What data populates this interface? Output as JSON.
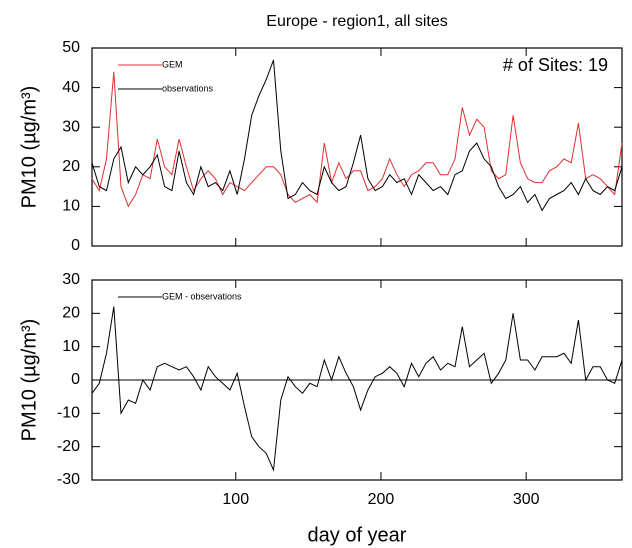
{
  "chart_data": [
    {
      "type": "line",
      "title": "Europe - region1, all sites",
      "annotation": "# of Sites: 19",
      "ylabel": "PM10 (µg/m³)",
      "x": [
        1,
        6,
        11,
        16,
        21,
        26,
        31,
        36,
        41,
        46,
        51,
        56,
        61,
        66,
        71,
        76,
        81,
        86,
        91,
        96,
        101,
        106,
        111,
        116,
        121,
        126,
        131,
        136,
        141,
        146,
        151,
        156,
        161,
        166,
        171,
        176,
        181,
        186,
        191,
        196,
        201,
        206,
        211,
        216,
        221,
        226,
        231,
        236,
        241,
        246,
        251,
        256,
        261,
        266,
        271,
        276,
        281,
        286,
        291,
        296,
        301,
        306,
        311,
        316,
        321,
        326,
        331,
        336,
        341,
        346,
        351,
        356,
        361,
        366
      ],
      "series": [
        {
          "name": "GEM",
          "color": "#e03030",
          "values": [
            17,
            14,
            22,
            44,
            15,
            10,
            13,
            18,
            17,
            27,
            20,
            18,
            27,
            20,
            14,
            17,
            19,
            17,
            13,
            16,
            15,
            14,
            16,
            18,
            20,
            20,
            18,
            13,
            11,
            12,
            13,
            11,
            26,
            16,
            21,
            17,
            19,
            19,
            14,
            15,
            17,
            22,
            18,
            15,
            18,
            19,
            21,
            21,
            18,
            18,
            22,
            35,
            28,
            32,
            30,
            19,
            17,
            18,
            33,
            21,
            17,
            16,
            16,
            19,
            20,
            22,
            21,
            31,
            17,
            18,
            17,
            15,
            13,
            26
          ]
        },
        {
          "name": "observations",
          "color": "#000000",
          "values": [
            21,
            15,
            14,
            22,
            25,
            16,
            20,
            18,
            20,
            23,
            15,
            14,
            24,
            16,
            13,
            20,
            15,
            16,
            14,
            19,
            13,
            22,
            33,
            38,
            42,
            47,
            24,
            12,
            13,
            16,
            14,
            13,
            20,
            16,
            14,
            15,
            21,
            28,
            17,
            14,
            15,
            18,
            16,
            17,
            13,
            18,
            16,
            14,
            15,
            13,
            18,
            19,
            24,
            26,
            22,
            20,
            15,
            12,
            13,
            15,
            11,
            13,
            9,
            12,
            13,
            14,
            16,
            13,
            17,
            14,
            13,
            15,
            14,
            20
          ]
        }
      ],
      "xlim": [
        1,
        366
      ],
      "xticks": [
        100,
        200,
        300
      ],
      "ylim": [
        0,
        50
      ],
      "yticks": [
        0,
        10,
        20,
        30,
        40,
        50
      ]
    },
    {
      "type": "line",
      "ylabel": "PM10 (µg/m³)",
      "xlabel": "day of year",
      "x": [
        1,
        6,
        11,
        16,
        21,
        26,
        31,
        36,
        41,
        46,
        51,
        56,
        61,
        66,
        71,
        76,
        81,
        86,
        91,
        96,
        101,
        106,
        111,
        116,
        121,
        126,
        131,
        136,
        141,
        146,
        151,
        156,
        161,
        166,
        171,
        176,
        181,
        186,
        191,
        196,
        201,
        206,
        211,
        216,
        221,
        226,
        231,
        236,
        241,
        246,
        251,
        256,
        261,
        266,
        271,
        276,
        281,
        286,
        291,
        296,
        301,
        306,
        311,
        316,
        321,
        326,
        331,
        336,
        341,
        346,
        351,
        356,
        361,
        366
      ],
      "series": [
        {
          "name": "GEM - observations",
          "color": "#000000",
          "values": [
            -4,
            -1,
            8,
            22,
            -10,
            -6,
            -7,
            0,
            -3,
            4,
            5,
            4,
            3,
            4,
            1,
            -3,
            4,
            1,
            -1,
            -3,
            2,
            -8,
            -17,
            -20,
            -22,
            -27,
            -6,
            1,
            -2,
            -4,
            -1,
            -2,
            6,
            0,
            7,
            2,
            -2,
            -9,
            -3,
            1,
            2,
            4,
            2,
            -2,
            5,
            1,
            5,
            7,
            3,
            5,
            4,
            16,
            4,
            6,
            8,
            -1,
            2,
            6,
            20,
            6,
            6,
            3,
            7,
            7,
            7,
            8,
            5,
            18,
            0,
            4,
            4,
            0,
            -1,
            6
          ]
        }
      ],
      "hlines": [
        0
      ],
      "xlim": [
        1,
        366
      ],
      "xticks": [
        100,
        200,
        300
      ],
      "ylim": [
        -30,
        30
      ],
      "yticks": [
        -30,
        -20,
        -10,
        0,
        10,
        20,
        30
      ]
    }
  ]
}
